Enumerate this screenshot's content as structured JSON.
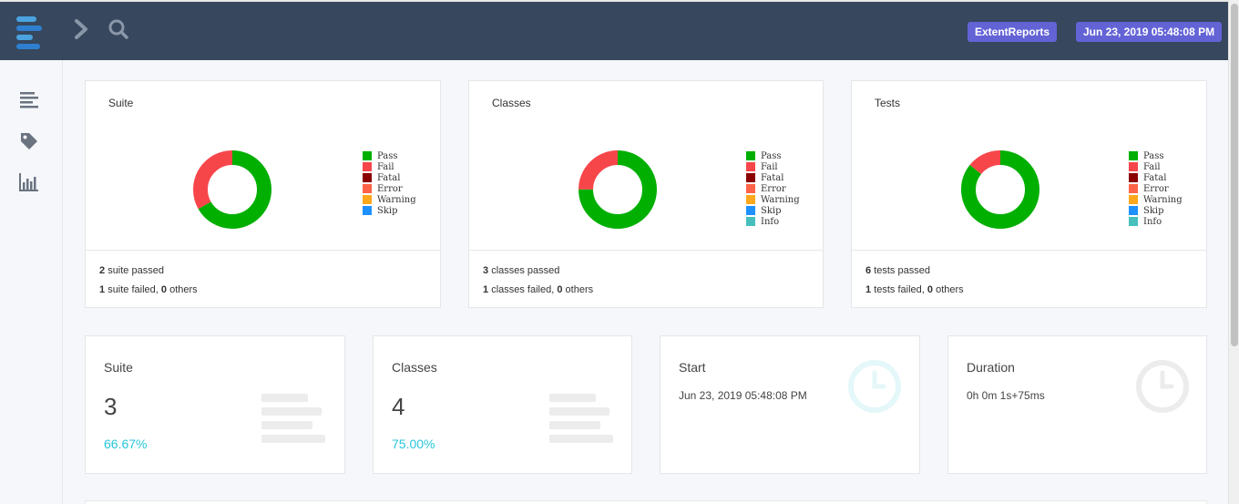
{
  "header": {
    "logo_icon": "extent-logo-icon",
    "brand_badge": "ExtentReports",
    "date_badge": "Jun 23, 2019 05:48:08 PM"
  },
  "sidebar": {
    "icons": [
      "list-icon",
      "tag-icon",
      "bar-chart-icon"
    ]
  },
  "colors": {
    "pass": "#00af00",
    "fail": "#f7464a",
    "fatal": "#8b0000",
    "error": "#ff6347",
    "warning": "#ffa81c",
    "skip": "#1e90ff",
    "info": "#46bfbd",
    "accent": "#26c6da"
  },
  "charts": {
    "suite": {
      "title": "Suite",
      "passed_count": "2",
      "passed_text": "suite passed",
      "failed_count": "1",
      "failed_text": "suite failed,",
      "others_count": "0",
      "others_text": "others",
      "legend": [
        "Pass",
        "Fail",
        "Fatal",
        "Error",
        "Warning",
        "Skip"
      ]
    },
    "classes": {
      "title": "Classes",
      "passed_count": "3",
      "passed_text": "classes passed",
      "failed_count": "1",
      "failed_text": "classes failed,",
      "others_count": "0",
      "others_text": "others",
      "legend": [
        "Pass",
        "Fail",
        "Fatal",
        "Error",
        "Warning",
        "Skip",
        "Info"
      ]
    },
    "tests": {
      "title": "Tests",
      "passed_count": "6",
      "passed_text": "tests passed",
      "failed_count": "1",
      "failed_text": "tests failed,",
      "others_count": "0",
      "others_text": "others",
      "legend": [
        "Pass",
        "Fail",
        "Fatal",
        "Error",
        "Warning",
        "Skip",
        "Info"
      ]
    }
  },
  "stats": {
    "suite": {
      "label": "Suite",
      "value": "3",
      "percent": "66.67%"
    },
    "classes": {
      "label": "Classes",
      "value": "4",
      "percent": "75.00%"
    },
    "start": {
      "label": "Start",
      "value": "Jun 23, 2019 05:48:08 PM"
    },
    "duration": {
      "label": "Duration",
      "value": "0h 0m 1s+75ms"
    }
  }
}
